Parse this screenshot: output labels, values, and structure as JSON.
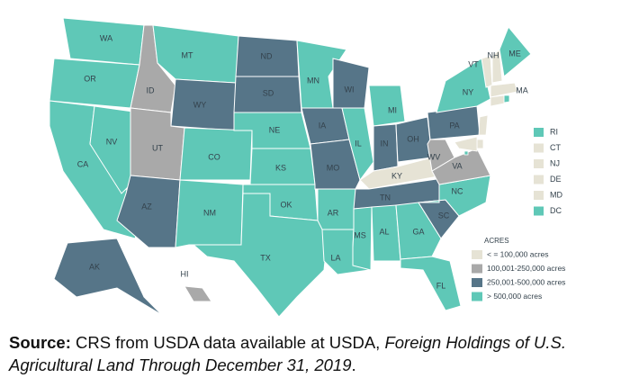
{
  "map": {
    "legend": {
      "title": "ACRES",
      "items": [
        {
          "label": "< = 100,000 acres",
          "color": "#e6e3d5"
        },
        {
          "label": "100,001-250,000 acres",
          "color": "#a9a9a9"
        },
        {
          "label": "250,001-500,000 acres",
          "color": "#567588"
        },
        {
          "label": "> 500,000 acres",
          "color": "#5fc8b7"
        }
      ]
    },
    "states": [
      {
        "label": "WA",
        "color": "#5fc8b7"
      },
      {
        "label": "OR",
        "color": "#5fc8b7"
      },
      {
        "label": "CA",
        "color": "#5fc8b7"
      },
      {
        "label": "NV",
        "color": "#5fc8b7"
      },
      {
        "label": "ID",
        "color": "#a9a9a9"
      },
      {
        "label": "MT",
        "color": "#5fc8b7"
      },
      {
        "label": "WY",
        "color": "#567588"
      },
      {
        "label": "UT",
        "color": "#a9a9a9"
      },
      {
        "label": "AZ",
        "color": "#567588"
      },
      {
        "label": "CO",
        "color": "#5fc8b7"
      },
      {
        "label": "NM",
        "color": "#5fc8b7"
      },
      {
        "label": "ND",
        "color": "#567588"
      },
      {
        "label": "SD",
        "color": "#567588"
      },
      {
        "label": "NE",
        "color": "#5fc8b7"
      },
      {
        "label": "KS",
        "color": "#5fc8b7"
      },
      {
        "label": "OK",
        "color": "#5fc8b7"
      },
      {
        "label": "TX",
        "color": "#5fc8b7"
      },
      {
        "label": "MN",
        "color": "#5fc8b7"
      },
      {
        "label": "IA",
        "color": "#567588"
      },
      {
        "label": "MO",
        "color": "#567588"
      },
      {
        "label": "AR",
        "color": "#5fc8b7"
      },
      {
        "label": "LA",
        "color": "#5fc8b7"
      },
      {
        "label": "WI",
        "color": "#567588"
      },
      {
        "label": "IL",
        "color": "#5fc8b7"
      },
      {
        "label": "MI",
        "color": "#5fc8b7"
      },
      {
        "label": "IN",
        "color": "#567588"
      },
      {
        "label": "OH",
        "color": "#567588"
      },
      {
        "label": "KY",
        "color": "#e6e3d5"
      },
      {
        "label": "TN",
        "color": "#567588"
      },
      {
        "label": "MS",
        "color": "#5fc8b7"
      },
      {
        "label": "AL",
        "color": "#5fc8b7"
      },
      {
        "label": "GA",
        "color": "#5fc8b7"
      },
      {
        "label": "FL",
        "color": "#5fc8b7"
      },
      {
        "label": "SC",
        "color": "#567588"
      },
      {
        "label": "NC",
        "color": "#5fc8b7"
      },
      {
        "label": "VA",
        "color": "#a9a9a9"
      },
      {
        "label": "WV",
        "color": "#a9a9a9"
      },
      {
        "label": "PA",
        "color": "#567588"
      },
      {
        "label": "NY",
        "color": "#5fc8b7"
      },
      {
        "label": "VT",
        "color": "#e6e3d5"
      },
      {
        "label": "NH",
        "color": "#e6e3d5"
      },
      {
        "label": "ME",
        "color": "#5fc8b7"
      },
      {
        "label": "MA",
        "color": "#e6e3d5"
      },
      {
        "label": "AK",
        "color": "#567588"
      },
      {
        "label": "HI",
        "color": "#a9a9a9"
      }
    ],
    "small_states": [
      {
        "label": "RI",
        "color": "#5fc8b7"
      },
      {
        "label": "CT",
        "color": "#e6e3d5"
      },
      {
        "label": "NJ",
        "color": "#e6e3d5"
      },
      {
        "label": "DE",
        "color": "#e6e3d5"
      },
      {
        "label": "MD",
        "color": "#e6e3d5"
      },
      {
        "label": "DC",
        "color": "#5fc8b7"
      }
    ]
  },
  "source": {
    "lead": "Source:",
    "text": "CRS from USDA data available at USDA,",
    "title": "Foreign Holdings of U.S. Agricultural Land Through December 31, 2019",
    "end": "."
  }
}
